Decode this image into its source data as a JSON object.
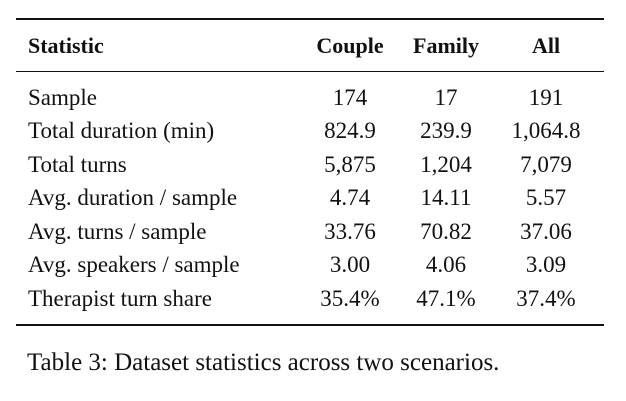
{
  "table": {
    "headers": [
      "Statistic",
      "Couple",
      "Family",
      "All"
    ],
    "rows": [
      [
        "Sample",
        "174",
        "17",
        "191"
      ],
      [
        "Total duration (min)",
        "824.9",
        "239.9",
        "1,064.8"
      ],
      [
        "Total turns",
        "5,875",
        "1,204",
        "7,079"
      ],
      [
        "Avg. duration / sample",
        "4.74",
        "14.11",
        "5.57"
      ],
      [
        "Avg. turns / sample",
        "33.76",
        "70.82",
        "37.06"
      ],
      [
        "Avg. speakers / sample",
        "3.00",
        "4.06",
        "3.09"
      ],
      [
        "Therapist turn share",
        "35.4%",
        "47.1%",
        "37.4%"
      ]
    ]
  },
  "caption": "Table 3: Dataset statistics across two scenarios."
}
